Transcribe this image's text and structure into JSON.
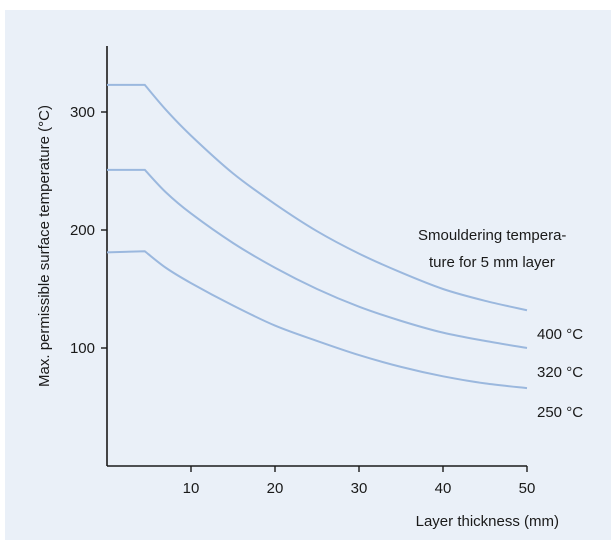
{
  "chart_data": {
    "type": "line",
    "xlabel": "Layer thickness (mm)",
    "ylabel": "Max. permissible surface temperature (°C)",
    "xlim": [
      0,
      50
    ],
    "ylim": [
      0,
      360
    ],
    "xticks": [
      10,
      20,
      30,
      40,
      50
    ],
    "yticks": [
      100,
      200,
      300
    ],
    "grid": false,
    "legend": {
      "title_lines": [
        "Smouldering tempera-",
        "ture for 5 mm layer"
      ],
      "placement": "right"
    },
    "series": [
      {
        "name": "400 °C",
        "color": "#9bb8de",
        "points": [
          [
            0,
            323
          ],
          [
            4.5,
            323
          ],
          [
            7,
            302
          ],
          [
            10,
            280
          ],
          [
            15,
            248
          ],
          [
            20,
            222
          ],
          [
            25,
            199
          ],
          [
            30,
            180
          ],
          [
            35,
            164
          ],
          [
            40,
            150
          ],
          [
            45,
            140
          ],
          [
            50,
            132
          ]
        ]
      },
      {
        "name": "320 °C",
        "color": "#9bb8de",
        "points": [
          [
            0,
            251
          ],
          [
            4.5,
            251
          ],
          [
            7,
            232
          ],
          [
            10,
            214
          ],
          [
            15,
            189
          ],
          [
            20,
            168
          ],
          [
            25,
            150
          ],
          [
            30,
            135
          ],
          [
            35,
            123
          ],
          [
            40,
            113
          ],
          [
            45,
            106
          ],
          [
            50,
            100
          ]
        ]
      },
      {
        "name": "250 °C",
        "color": "#9bb8de",
        "points": [
          [
            0,
            181
          ],
          [
            4.5,
            182
          ],
          [
            7,
            168
          ],
          [
            10,
            155
          ],
          [
            15,
            136
          ],
          [
            20,
            119
          ],
          [
            25,
            106
          ],
          [
            30,
            94
          ],
          [
            35,
            84
          ],
          [
            40,
            76
          ],
          [
            45,
            70
          ],
          [
            50,
            66
          ]
        ]
      }
    ]
  }
}
